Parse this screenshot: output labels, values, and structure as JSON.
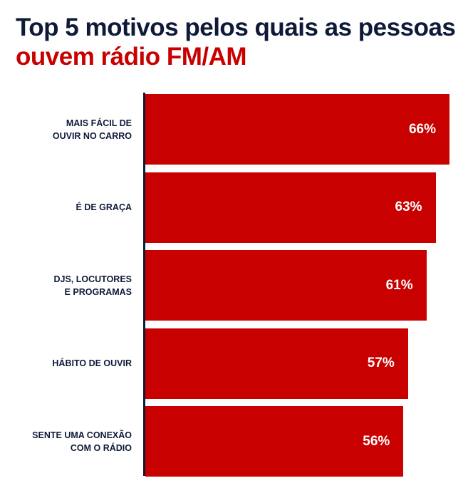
{
  "chart_data": {
    "type": "bar",
    "orientation": "horizontal",
    "title": "Top 5 motivos pelos quais as pessoas ouvem rádio FM/AM",
    "title_parts": {
      "plain": "Top 5 motivos pelos quais as pessoas ",
      "highlight": "ouvem rádio FM/AM"
    },
    "categories": [
      [
        "MAIS FÁCIL DE",
        "OUVIR NO CARRO"
      ],
      [
        "É DE GRAÇA"
      ],
      [
        "DJS, LOCUTORES",
        "E PROGRAMAS"
      ],
      [
        "HÁBITO DE OUVIR"
      ],
      [
        "SENTE UMA CONEXÃO",
        "COM O RÁDIO"
      ]
    ],
    "values": [
      66,
      63,
      61,
      57,
      56
    ],
    "value_labels": [
      "66%",
      "63%",
      "61%",
      "57%",
      "56%"
    ],
    "unit": "%",
    "xlim": [
      0,
      66
    ],
    "grid": false,
    "colors": {
      "bar": "#c80000",
      "text": "#0e1a38",
      "highlight": "#c80000"
    }
  }
}
